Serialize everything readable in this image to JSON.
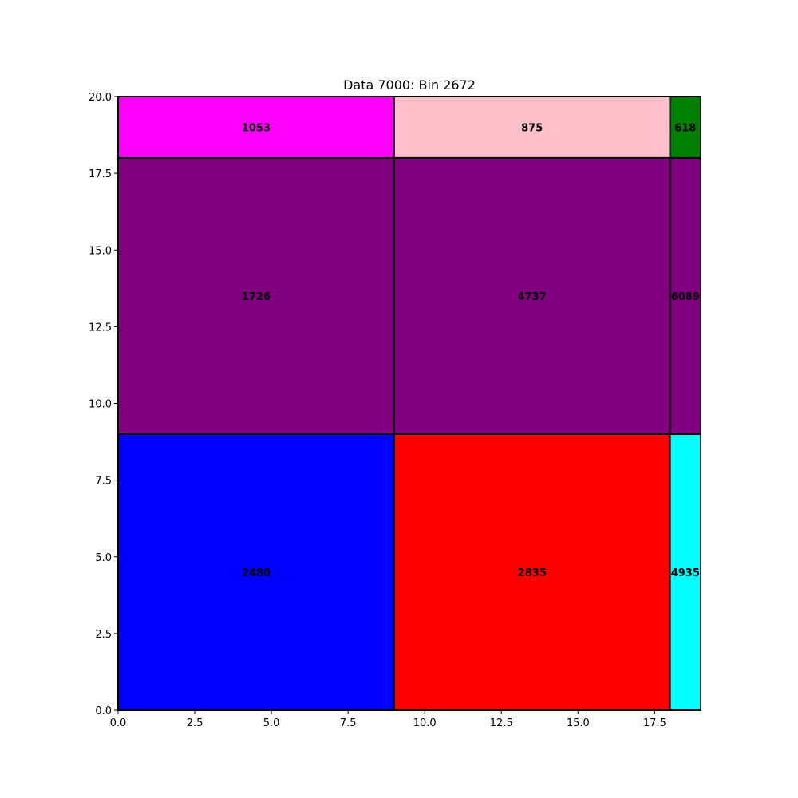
{
  "chart_data": {
    "type": "treemap",
    "title": "Data 7000: Bin 2672",
    "xlabel": "",
    "ylabel": "",
    "xlim": [
      0,
      19
    ],
    "ylim": [
      0,
      20
    ],
    "xticks": [
      "0.0",
      "2.5",
      "5.0",
      "7.5",
      "10.0",
      "12.5",
      "15.0",
      "17.5"
    ],
    "yticks": [
      "0.0",
      "2.5",
      "5.0",
      "7.5",
      "10.0",
      "12.5",
      "15.0",
      "17.5",
      "20.0"
    ],
    "grid": false,
    "rects": [
      {
        "label": "2480",
        "x": 0,
        "y": 0,
        "w": 9,
        "h": 9,
        "color": "#0000ff"
      },
      {
        "label": "2835",
        "x": 9,
        "y": 0,
        "w": 9,
        "h": 9,
        "color": "#ff0000"
      },
      {
        "label": "4935",
        "x": 18,
        "y": 0,
        "w": 1,
        "h": 9,
        "color": "#00ffff"
      },
      {
        "label": "1726",
        "x": 0,
        "y": 9,
        "w": 9,
        "h": 9,
        "color": "#800080"
      },
      {
        "label": "4737",
        "x": 9,
        "y": 9,
        "w": 9,
        "h": 9,
        "color": "#800080"
      },
      {
        "label": "6089",
        "x": 18,
        "y": 9,
        "w": 1,
        "h": 9,
        "color": "#800080"
      },
      {
        "label": "1053",
        "x": 0,
        "y": 18,
        "w": 9,
        "h": 2,
        "color": "#ff00ff"
      },
      {
        "label": "875",
        "x": 9,
        "y": 18,
        "w": 9,
        "h": 2,
        "color": "#ffc0cb"
      },
      {
        "label": "618",
        "x": 18,
        "y": 18,
        "w": 1,
        "h": 2,
        "color": "#008000"
      }
    ]
  }
}
